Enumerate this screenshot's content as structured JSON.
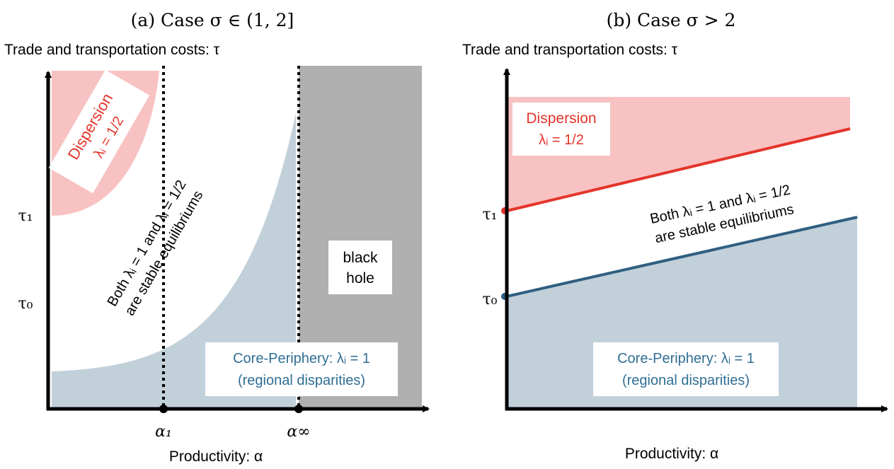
{
  "panel_a": {
    "caption": "(a) Case σ ∈ (1, 2]",
    "y_axis_title": "Trade and transportation costs: τ",
    "x_axis_title": "Productivity: α",
    "tick_tau1": "τ₁",
    "tick_tau0": "τ₀",
    "tick_alpha1": "α₁",
    "tick_alpha_inf": "α∞",
    "dispersion_label": "Dispersion",
    "dispersion_value": "λᵢ = 1/2",
    "both_line1": "Both λᵢ = 1 and λᵢ = 1/2",
    "both_line2": "are stable equilibriums",
    "black_hole_line1": "black",
    "black_hole_line2": "hole",
    "core_line1": "Core-Periphery: λᵢ = 1",
    "core_line2": "(regional disparities)"
  },
  "panel_b": {
    "caption": "(b) Case σ > 2",
    "y_axis_title": "Trade and transportation costs: τ",
    "x_axis_title": "Productivity: α",
    "tick_tau1": "τ₁",
    "tick_tau0": "τ₀",
    "dispersion_label": "Dispersion",
    "dispersion_value": "λᵢ = 1/2",
    "both_line1": "Both λᵢ = 1 and λᵢ = 1/2",
    "both_line2": "are stable equilibriums",
    "core_line1": "Core-Periphery: λᵢ = 1",
    "core_line2": "(regional disparities)"
  },
  "colors": {
    "dispersion_fill": "#f8c2c2",
    "core_fill": "#c2d0da",
    "black_hole_fill": "#b0b0b0",
    "dispersion_text": "#e4342a",
    "core_text": "#2f6e94",
    "red_line": "#e4342a",
    "blue_line": "#2f5f80"
  }
}
